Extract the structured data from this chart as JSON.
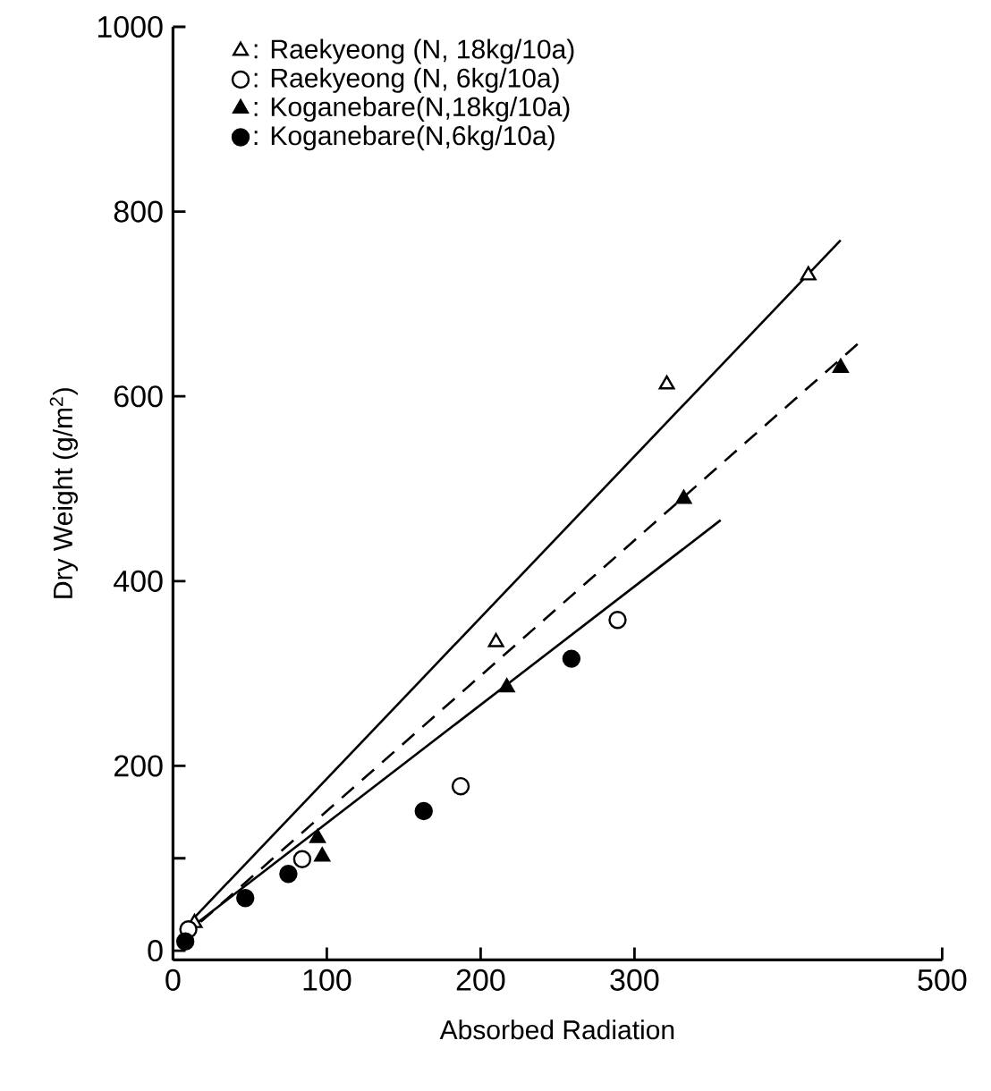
{
  "chart_data": {
    "type": "scatter",
    "xlabel": "Absorbed Radiation",
    "ylabel": "Dry Weight (g/m$^{2}$)",
    "xlim": [
      0,
      500
    ],
    "ylim": [
      -10,
      1000
    ],
    "xticks": [
      0,
      100,
      200,
      300,
      500
    ],
    "yticks": [
      0,
      {
        "value": 100,
        "label": null
      },
      200,
      400,
      600,
      800,
      1000
    ],
    "legend": "top left",
    "series": [
      {
        "name": ": Raekyeong (N, 18kg/10a)",
        "marker": "triangle",
        "color": "#ffffff",
        "x": [
          14,
          210,
          321,
          413
        ],
        "values": [
          30,
          334,
          613,
          731
        ]
      },
      {
        "name": ": Raekyeong (N, 6kg/10a)",
        "marker": "circle",
        "color": "#ffffff",
        "x": [
          10,
          84,
          187,
          289
        ],
        "values": [
          23,
          99,
          178,
          358
        ]
      },
      {
        "name": ": Koganebare(N,18kg/10a)",
        "marker": "triangle",
        "color": "#000000",
        "x": [
          94,
          97,
          217,
          332,
          434
        ],
        "values": [
          122,
          102,
          285,
          489,
          631
        ]
      },
      {
        "name": ": Koganebare(N,6kg/10a)",
        "marker": "circle",
        "color": "#000000",
        "x": [
          8,
          47,
          75,
          163,
          259
        ],
        "values": [
          10,
          57,
          83,
          151,
          316
        ]
      },
      {
        "type": "line",
        "line_style": "solid",
        "color": "#000000",
        "x": [
          14,
          434
        ],
        "values": [
          36,
          769
        ]
      },
      {
        "type": "line",
        "line_style": "dashed",
        "color": "#000000",
        "x": [
          5,
          446
        ],
        "values": [
          12,
          658
        ]
      },
      {
        "type": "line",
        "line_style": "solid",
        "color": "#000000",
        "x": [
          4,
          356
        ],
        "values": [
          15,
          466
        ]
      }
    ]
  }
}
